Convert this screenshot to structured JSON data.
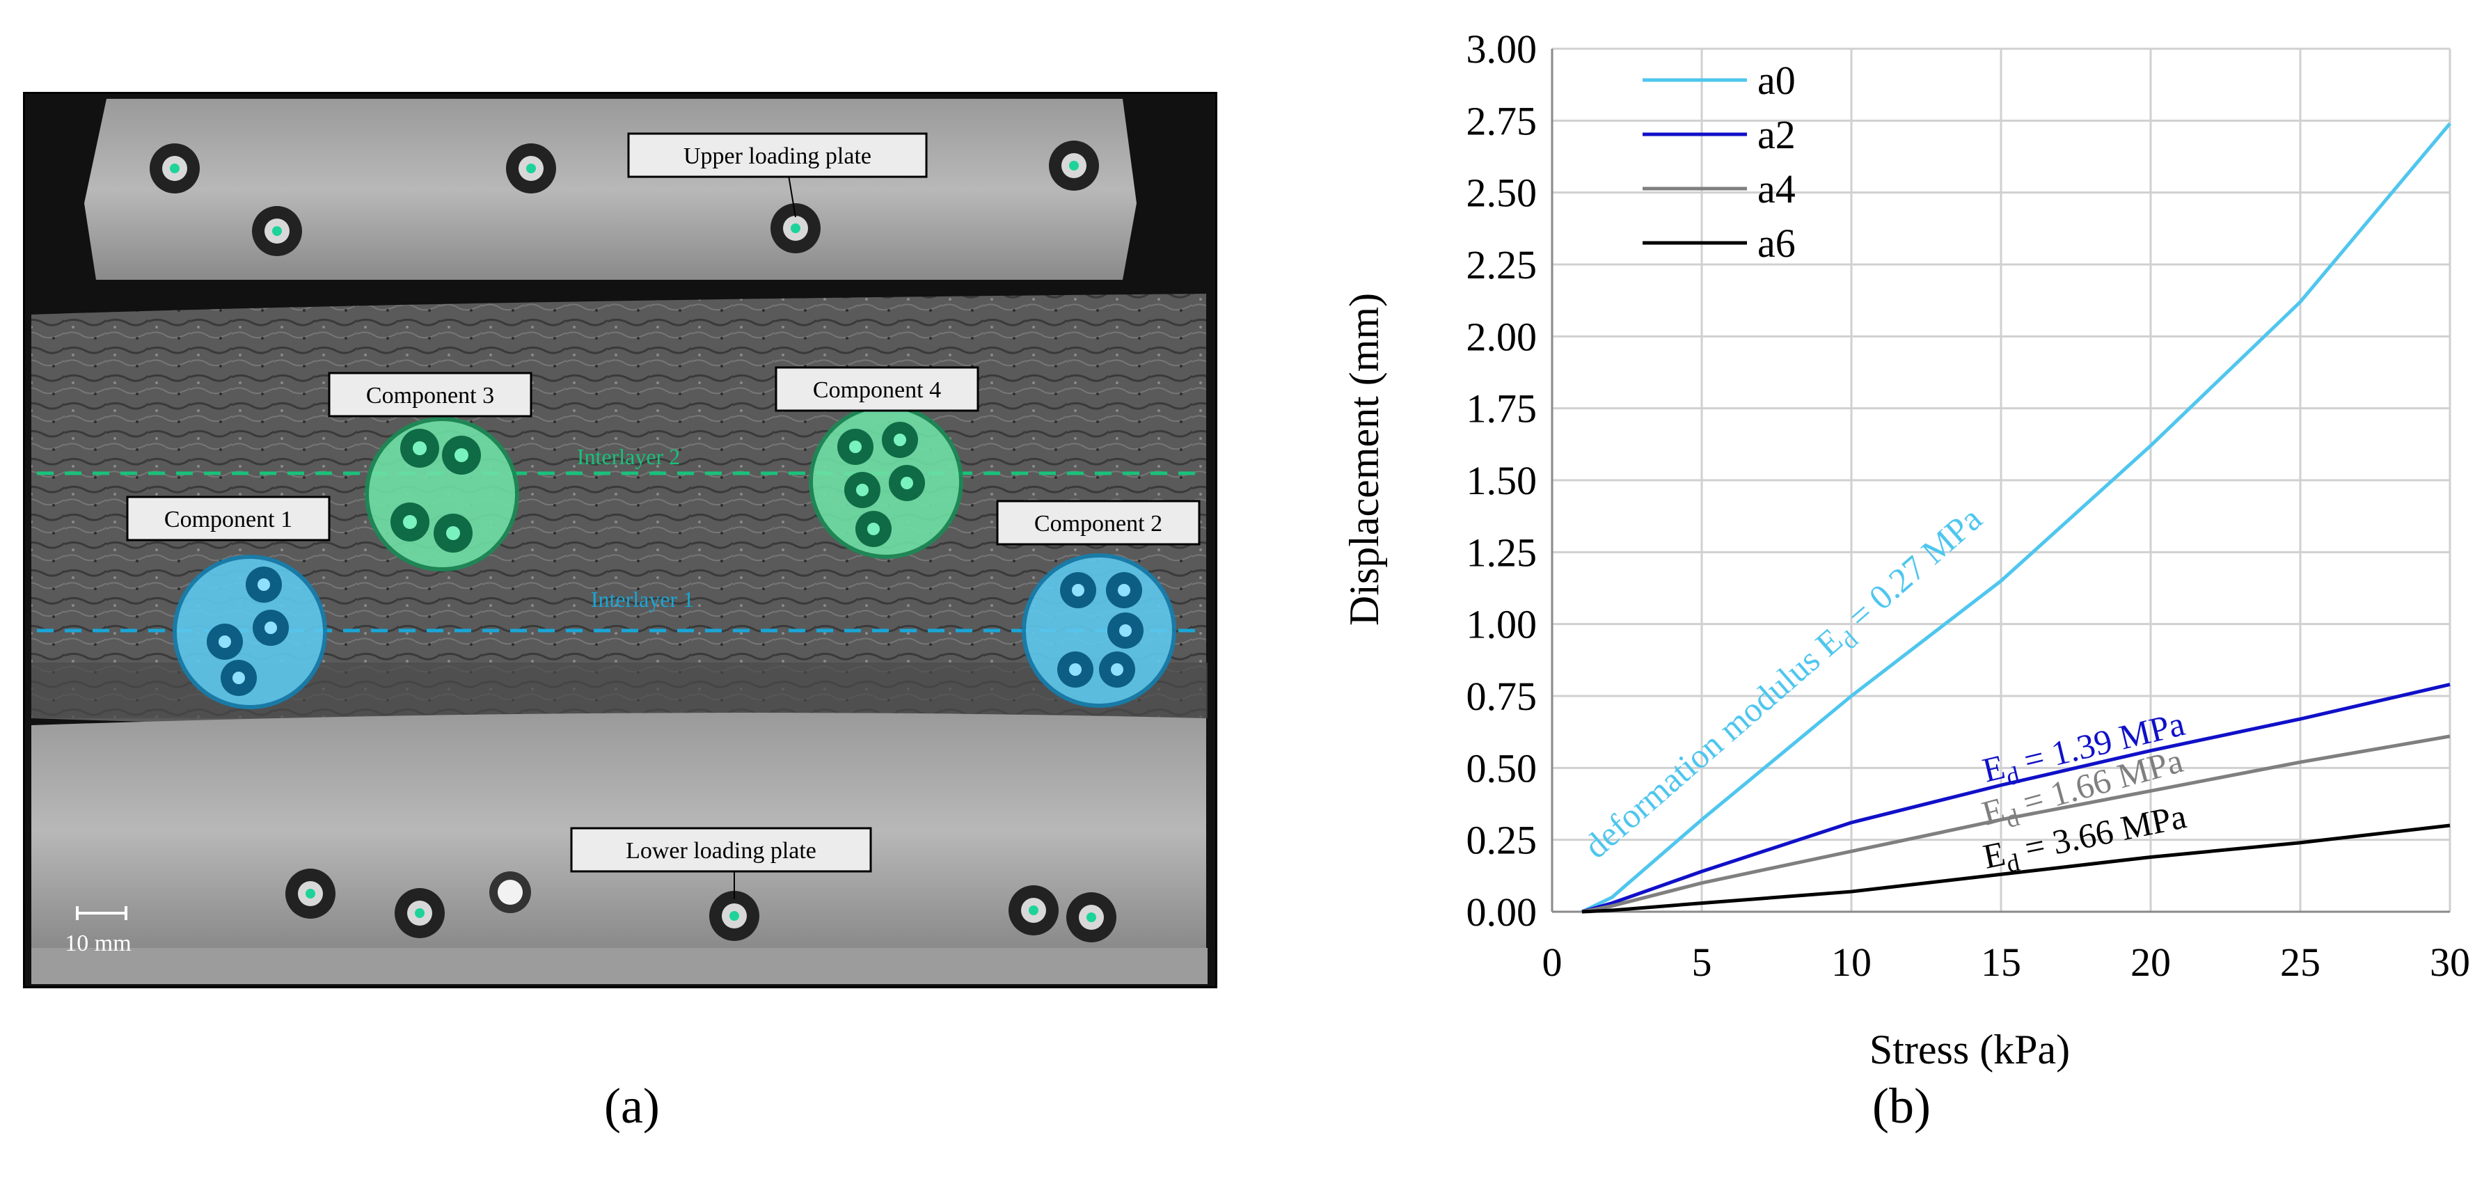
{
  "figure": {
    "panel_a": {
      "caption": "(a)",
      "labels": {
        "upper_plate": "Upper loading plate",
        "lower_plate": "Lower loading plate",
        "component_1": "Component 1",
        "component_2": "Component 2",
        "component_3": "Component 3",
        "component_4": "Component 4",
        "interlayer_1": "Interlayer 1",
        "interlayer_2": "Interlayer 2",
        "scale": "10 mm"
      },
      "colors": {
        "interlayer_1": "#1aa6d6",
        "interlayer_2": "#19c27a",
        "blue_component": "#5ec8ee",
        "green_component": "#6ee0a6",
        "frame": "#000000"
      }
    },
    "panel_b": {
      "caption": "(b)"
    }
  },
  "chart_data": {
    "type": "line",
    "xlabel": "Stress (kPa)",
    "ylabel": "Displacement (mm)",
    "xlim": [
      0,
      30
    ],
    "ylim": [
      0,
      3.0
    ],
    "xticks": [
      0,
      5,
      10,
      15,
      20,
      25,
      30
    ],
    "yticks": [
      0.0,
      0.25,
      0.5,
      0.75,
      1.0,
      1.25,
      1.5,
      1.75,
      2.0,
      2.25,
      2.5,
      2.75,
      3.0
    ],
    "ytick_labels": [
      "0.00",
      "0.25",
      "0.50",
      "0.75",
      "1.00",
      "1.25",
      "1.50",
      "1.75",
      "2.00",
      "2.25",
      "2.50",
      "2.75",
      "3.00"
    ],
    "grid": true,
    "legend_position": "top-left",
    "series": [
      {
        "name": "a0",
        "color": "#4fc6ee",
        "x": [
          1,
          2,
          5,
          10,
          15,
          20,
          25,
          30
        ],
        "y": [
          0.0,
          0.05,
          0.32,
          0.75,
          1.15,
          1.62,
          2.12,
          2.74
        ]
      },
      {
        "name": "a2",
        "color": "#1010c8",
        "x": [
          1,
          2,
          5,
          10,
          15,
          20,
          25,
          30
        ],
        "y": [
          0.0,
          0.03,
          0.14,
          0.31,
          0.44,
          0.56,
          0.67,
          0.79
        ]
      },
      {
        "name": "a4",
        "color": "#7f7f7f",
        "x": [
          1,
          2,
          5,
          10,
          15,
          20,
          25,
          30
        ],
        "y": [
          0.0,
          0.02,
          0.1,
          0.21,
          0.32,
          0.42,
          0.52,
          0.61
        ]
      },
      {
        "name": "a6",
        "color": "#000000",
        "x": [
          1,
          2,
          5,
          10,
          15,
          20,
          25,
          30
        ],
        "y": [
          0.0,
          0.005,
          0.03,
          0.07,
          0.13,
          0.19,
          0.24,
          0.3
        ]
      }
    ],
    "annotations": [
      {
        "series": "a0",
        "prefix": "deformation modulus E",
        "sub": "d",
        "suffix": " = 0.27 MPa",
        "at": [
          1.5,
          0.18
        ],
        "to": [
          15.5,
          1.45
        ]
      },
      {
        "series": "a2",
        "prefix": "E",
        "sub": "d",
        "suffix": " = 1.39 MPa",
        "at": [
          14.5,
          0.45
        ],
        "to": [
          22.5,
          0.65
        ]
      },
      {
        "series": "a4",
        "prefix": "E",
        "sub": "d",
        "suffix": " = 1.66 MPa",
        "at": [
          14.5,
          0.3
        ],
        "to": [
          21.5,
          0.5
        ]
      },
      {
        "series": "a6",
        "prefix": "E",
        "sub": "d",
        "suffix": " = 3.66 MPa",
        "at": [
          14.5,
          0.15
        ],
        "to": [
          21.5,
          0.3
        ]
      }
    ]
  }
}
